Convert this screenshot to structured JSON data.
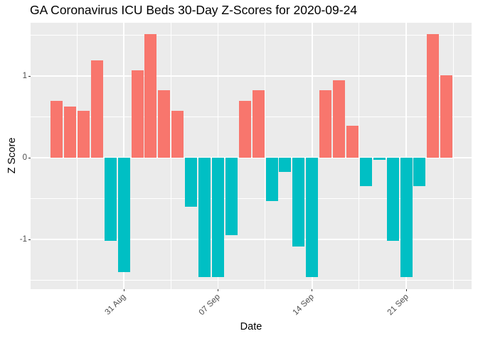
{
  "chart_data": {
    "type": "bar",
    "title": "GA Coronavirus ICU Beds 30-Day Z-Scores for 2020-09-24",
    "xlabel": "Date",
    "ylabel": "Z Score",
    "x": [
      "2020-08-26",
      "2020-08-27",
      "2020-08-28",
      "2020-08-29",
      "2020-08-30",
      "2020-08-31",
      "2020-09-01",
      "2020-09-02",
      "2020-09-03",
      "2020-09-04",
      "2020-09-05",
      "2020-09-06",
      "2020-09-07",
      "2020-09-08",
      "2020-09-09",
      "2020-09-10",
      "2020-09-11",
      "2020-09-12",
      "2020-09-13",
      "2020-09-14",
      "2020-09-15",
      "2020-09-16",
      "2020-09-17",
      "2020-09-18",
      "2020-09-19",
      "2020-09-20",
      "2020-09-21",
      "2020-09-22",
      "2020-09-23",
      "2020-09-24"
    ],
    "values": [
      0.7,
      0.63,
      0.57,
      1.19,
      -1.02,
      -1.4,
      1.07,
      1.51,
      0.83,
      0.57,
      -0.6,
      -1.46,
      -1.46,
      -0.95,
      0.7,
      0.83,
      -0.53,
      -0.17,
      -1.09,
      -1.46,
      0.83,
      0.95,
      0.39,
      -0.35,
      -0.03,
      -1.02,
      -1.46,
      -0.35,
      1.51,
      1.01
    ],
    "ylim": [
      -1.61,
      1.66
    ],
    "y_ticks": [
      {
        "label": "1",
        "value": 1
      },
      {
        "label": "0",
        "value": 0
      },
      {
        "label": "-1",
        "value": -1
      }
    ],
    "y_minor_values": [
      1.5,
      0.5,
      -0.5,
      -1.5
    ],
    "x_ticks": [
      {
        "label": "31 Aug",
        "day": 5
      },
      {
        "label": "07 Sep",
        "day": 12
      },
      {
        "label": "14 Sep",
        "day": 19
      },
      {
        "label": "21 Sep",
        "day": 26
      }
    ],
    "x_minor_days": [
      1.5,
      8.5,
      15.5,
      22.5,
      29.5
    ],
    "legend": "none",
    "grid": "on",
    "colors": {
      "positive_bar": "#F8766D",
      "negative_bar": "#00BFC4",
      "panel_background": "#EBEBEB",
      "gridline": "#FFFFFF",
      "tick_mark": "#333333",
      "tick_label": "#4D4D4D",
      "text": "#000000",
      "figure_background": "#FFFFFF"
    }
  }
}
